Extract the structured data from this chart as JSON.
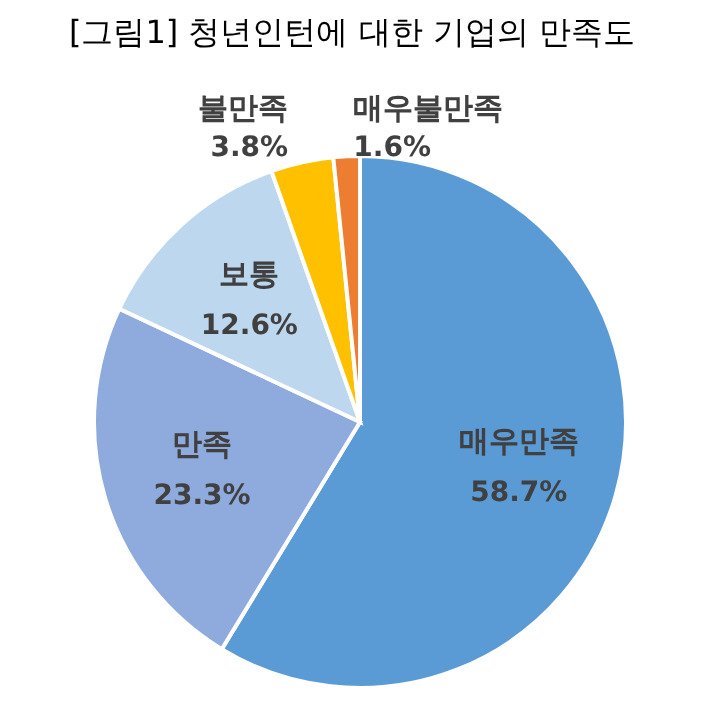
{
  "chart_data": {
    "type": "pie",
    "title": "[그림1] 청년인턴에 대한 기업의 만족도",
    "categories": [
      "매우만족",
      "만족",
      "보통",
      "불만족",
      "매우불만족"
    ],
    "values": [
      58.7,
      23.3,
      12.6,
      3.8,
      1.6
    ],
    "colors": [
      "#5b9bd5",
      "#8faadc",
      "#bdd7ee",
      "#ffc000",
      "#ed7d31"
    ],
    "value_labels": [
      "58.7%",
      "23.3%",
      "12.6%",
      "3.8%",
      "1.6%"
    ]
  }
}
